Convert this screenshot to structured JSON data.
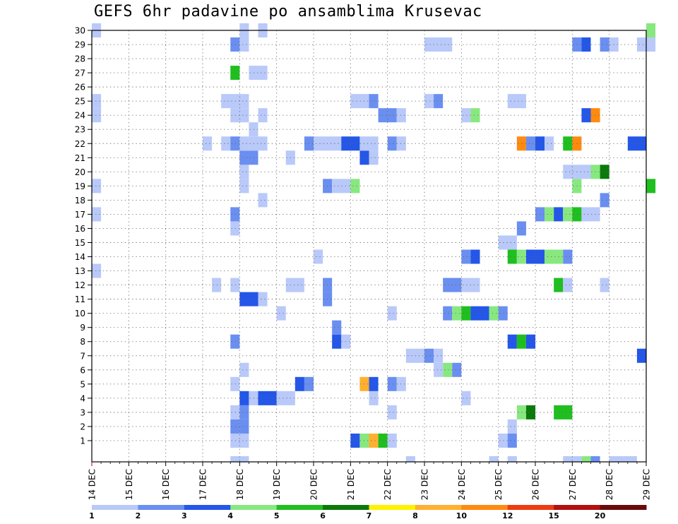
{
  "title": "GEFS 6hr padavine po ansamblima Krusevac",
  "chart_data": {
    "type": "heatmap",
    "title": "GEFS 6hr padavine po ansamblima Krusevac",
    "x_ticks": [
      "14 DEC",
      "15 DEC",
      "16 DEC",
      "17 DEC",
      "18 DEC",
      "19 DEC",
      "20 DEC",
      "21 DEC",
      "22 DEC",
      "23 DEC",
      "24 DEC",
      "25 DEC",
      "26 DEC",
      "27 DEC",
      "28 DEC",
      "29 DEC"
    ],
    "y_ticks": [
      1,
      2,
      3,
      4,
      5,
      6,
      7,
      8,
      9,
      10,
      11,
      12,
      13,
      14,
      15,
      16,
      17,
      18,
      19,
      20,
      21,
      22,
      23,
      24,
      25,
      26,
      27,
      28,
      29,
      30
    ],
    "xlim": [
      "14 DEC",
      "29 DEC"
    ],
    "ylim": [
      0,
      30
    ],
    "time_step_hours": 6,
    "grid": true,
    "colorbar": {
      "levels": [
        "1",
        "2",
        "3",
        "4",
        "5",
        "6",
        "7",
        "8",
        "10",
        "12",
        "15",
        "20"
      ],
      "colors": [
        "#b9c9f9",
        "#6a8ff0",
        "#2456e8",
        "#88e880",
        "#1fbf1f",
        "#0b7a0b",
        "#fff200",
        "#ffb030",
        "#ff8a10",
        "#ee3b10",
        "#b31010",
        "#6a0a0a"
      ]
    },
    "cells": [
      {
        "m": 1,
        "s": 15,
        "e": 17,
        "c": 0
      },
      {
        "m": 1,
        "s": 28,
        "e": 29,
        "c": 2
      },
      {
        "m": 1,
        "s": 29,
        "e": 30,
        "c": 3
      },
      {
        "m": 1,
        "s": 30,
        "e": 31,
        "c": 7
      },
      {
        "m": 1,
        "s": 31,
        "e": 32,
        "c": 4
      },
      {
        "m": 1,
        "s": 32,
        "e": 33,
        "c": 0
      },
      {
        "m": 1,
        "s": 44,
        "e": 45,
        "c": 0
      },
      {
        "m": 1,
        "s": 45,
        "e": 46,
        "c": 1
      },
      {
        "m": 2,
        "s": 15,
        "e": 16,
        "c": 1
      },
      {
        "m": 2,
        "s": 16,
        "e": 17,
        "c": 1
      },
      {
        "m": 2,
        "s": 45,
        "e": 46,
        "c": 0
      },
      {
        "m": 3,
        "s": 15,
        "e": 16,
        "c": 0
      },
      {
        "m": 3,
        "s": 16,
        "e": 17,
        "c": 1
      },
      {
        "m": 3,
        "s": 32,
        "e": 33,
        "c": 0
      },
      {
        "m": 3,
        "s": 46,
        "e": 47,
        "c": 3
      },
      {
        "m": 3,
        "s": 47,
        "e": 48,
        "c": 5
      },
      {
        "m": 3,
        "s": 50,
        "e": 52,
        "c": 4
      },
      {
        "m": 4,
        "s": 16,
        "e": 17,
        "c": 2
      },
      {
        "m": 4,
        "s": 17,
        "e": 18,
        "c": 0
      },
      {
        "m": 4,
        "s": 18,
        "e": 20,
        "c": 2
      },
      {
        "m": 4,
        "s": 20,
        "e": 22,
        "c": 0
      },
      {
        "m": 4,
        "s": 30,
        "e": 31,
        "c": 0
      },
      {
        "m": 4,
        "s": 40,
        "e": 41,
        "c": 0
      },
      {
        "m": 5,
        "s": 15,
        "e": 16,
        "c": 0
      },
      {
        "m": 5,
        "s": 22,
        "e": 23,
        "c": 2
      },
      {
        "m": 5,
        "s": 23,
        "e": 24,
        "c": 1
      },
      {
        "m": 5,
        "s": 29,
        "e": 30,
        "c": 7
      },
      {
        "m": 5,
        "s": 30,
        "e": 31,
        "c": 2
      },
      {
        "m": 5,
        "s": 32,
        "e": 33,
        "c": 1
      },
      {
        "m": 5,
        "s": 33,
        "e": 34,
        "c": 0
      },
      {
        "m": 6,
        "s": 16,
        "e": 17,
        "c": 0
      },
      {
        "m": 6,
        "s": 37,
        "e": 38,
        "c": 0
      },
      {
        "m": 6,
        "s": 38,
        "e": 39,
        "c": 3
      },
      {
        "m": 6,
        "s": 39,
        "e": 40,
        "c": 1
      },
      {
        "m": 7,
        "s": 34,
        "e": 36,
        "c": 0
      },
      {
        "m": 7,
        "s": 36,
        "e": 37,
        "c": 1
      },
      {
        "m": 7,
        "s": 37,
        "e": 38,
        "c": 0
      },
      {
        "m": 7,
        "s": 59,
        "e": 60,
        "c": 2
      },
      {
        "m": 8,
        "s": 15,
        "e": 16,
        "c": 1
      },
      {
        "m": 8,
        "s": 26,
        "e": 27,
        "c": 2
      },
      {
        "m": 8,
        "s": 27,
        "e": 28,
        "c": 0
      },
      {
        "m": 8,
        "s": 45,
        "e": 46,
        "c": 2
      },
      {
        "m": 8,
        "s": 46,
        "e": 47,
        "c": 4
      },
      {
        "m": 8,
        "s": 47,
        "e": 48,
        "c": 2
      },
      {
        "m": 9,
        "s": 26,
        "e": 27,
        "c": 1
      },
      {
        "m": 10,
        "s": 20,
        "e": 21,
        "c": 0
      },
      {
        "m": 10,
        "s": 32,
        "e": 33,
        "c": 0
      },
      {
        "m": 10,
        "s": 38,
        "e": 39,
        "c": 1
      },
      {
        "m": 10,
        "s": 39,
        "e": 40,
        "c": 3
      },
      {
        "m": 10,
        "s": 40,
        "e": 41,
        "c": 4
      },
      {
        "m": 10,
        "s": 41,
        "e": 43,
        "c": 2
      },
      {
        "m": 10,
        "s": 43,
        "e": 44,
        "c": 3
      },
      {
        "m": 10,
        "s": 44,
        "e": 45,
        "c": 1
      },
      {
        "m": 11,
        "s": 16,
        "e": 18,
        "c": 2
      },
      {
        "m": 11,
        "s": 18,
        "e": 19,
        "c": 0
      },
      {
        "m": 11,
        "s": 25,
        "e": 26,
        "c": 1
      },
      {
        "m": 12,
        "s": 13,
        "e": 14,
        "c": 0
      },
      {
        "m": 12,
        "s": 15,
        "e": 16,
        "c": 0
      },
      {
        "m": 12,
        "s": 21,
        "e": 23,
        "c": 0
      },
      {
        "m": 12,
        "s": 25,
        "e": 26,
        "c": 1
      },
      {
        "m": 12,
        "s": 38,
        "e": 40,
        "c": 1
      },
      {
        "m": 12,
        "s": 40,
        "e": 42,
        "c": 0
      },
      {
        "m": 12,
        "s": 50,
        "e": 51,
        "c": 4
      },
      {
        "m": 12,
        "s": 51,
        "e": 52,
        "c": 0
      },
      {
        "m": 12,
        "s": 55,
        "e": 56,
        "c": 0
      },
      {
        "m": 13,
        "s": 0,
        "e": 1,
        "c": 0
      },
      {
        "m": 14,
        "s": 24,
        "e": 25,
        "c": 0
      },
      {
        "m": 14,
        "s": 40,
        "e": 41,
        "c": 1
      },
      {
        "m": 14,
        "s": 41,
        "e": 42,
        "c": 2
      },
      {
        "m": 14,
        "s": 45,
        "e": 46,
        "c": 4
      },
      {
        "m": 14,
        "s": 46,
        "e": 47,
        "c": 3
      },
      {
        "m": 14,
        "s": 47,
        "e": 49,
        "c": 2
      },
      {
        "m": 14,
        "s": 49,
        "e": 51,
        "c": 3
      },
      {
        "m": 14,
        "s": 51,
        "e": 52,
        "c": 1
      },
      {
        "m": 15,
        "s": 44,
        "e": 46,
        "c": 0
      },
      {
        "m": 16,
        "s": 15,
        "e": 16,
        "c": 0
      },
      {
        "m": 16,
        "s": 46,
        "e": 47,
        "c": 1
      },
      {
        "m": 17,
        "s": 0,
        "e": 1,
        "c": 0
      },
      {
        "m": 17,
        "s": 15,
        "e": 16,
        "c": 1
      },
      {
        "m": 17,
        "s": 48,
        "e": 49,
        "c": 1
      },
      {
        "m": 17,
        "s": 49,
        "e": 50,
        "c": 3
      },
      {
        "m": 17,
        "s": 50,
        "e": 51,
        "c": 2
      },
      {
        "m": 17,
        "s": 51,
        "e": 52,
        "c": 3
      },
      {
        "m": 17,
        "s": 52,
        "e": 53,
        "c": 4
      },
      {
        "m": 17,
        "s": 53,
        "e": 55,
        "c": 0
      },
      {
        "m": 18,
        "s": 18,
        "e": 19,
        "c": 0
      },
      {
        "m": 18,
        "s": 55,
        "e": 56,
        "c": 1
      },
      {
        "m": 19,
        "s": 0,
        "e": 1,
        "c": 0
      },
      {
        "m": 19,
        "s": 16,
        "e": 17,
        "c": 0
      },
      {
        "m": 19,
        "s": 25,
        "e": 26,
        "c": 1
      },
      {
        "m": 19,
        "s": 26,
        "e": 28,
        "c": 0
      },
      {
        "m": 19,
        "s": 28,
        "e": 29,
        "c": 3
      },
      {
        "m": 19,
        "s": 52,
        "e": 53,
        "c": 3
      },
      {
        "m": 19,
        "s": 60,
        "e": 61,
        "c": 4
      },
      {
        "m": 20,
        "s": 16,
        "e": 17,
        "c": 0
      },
      {
        "m": 20,
        "s": 51,
        "e": 54,
        "c": 0
      },
      {
        "m": 20,
        "s": 54,
        "e": 55,
        "c": 3
      },
      {
        "m": 20,
        "s": 55,
        "e": 56,
        "c": 5
      },
      {
        "m": 21,
        "s": 16,
        "e": 18,
        "c": 1
      },
      {
        "m": 21,
        "s": 21,
        "e": 22,
        "c": 0
      },
      {
        "m": 21,
        "s": 29,
        "e": 30,
        "c": 2
      },
      {
        "m": 21,
        "s": 30,
        "e": 31,
        "c": 0
      },
      {
        "m": 22,
        "s": 12,
        "e": 13,
        "c": 0
      },
      {
        "m": 22,
        "s": 14,
        "e": 15,
        "c": 0
      },
      {
        "m": 22,
        "s": 15,
        "e": 16,
        "c": 1
      },
      {
        "m": 22,
        "s": 16,
        "e": 17,
        "c": 0
      },
      {
        "m": 22,
        "s": 17,
        "e": 19,
        "c": 0
      },
      {
        "m": 22,
        "s": 23,
        "e": 24,
        "c": 1
      },
      {
        "m": 22,
        "s": 24,
        "e": 27,
        "c": 0
      },
      {
        "m": 22,
        "s": 27,
        "e": 29,
        "c": 2
      },
      {
        "m": 22,
        "s": 29,
        "e": 31,
        "c": 0
      },
      {
        "m": 22,
        "s": 32,
        "e": 33,
        "c": 1
      },
      {
        "m": 22,
        "s": 33,
        "e": 34,
        "c": 0
      },
      {
        "m": 22,
        "s": 46,
        "e": 47,
        "c": 8
      },
      {
        "m": 22,
        "s": 47,
        "e": 48,
        "c": 1
      },
      {
        "m": 22,
        "s": 48,
        "e": 49,
        "c": 2
      },
      {
        "m": 22,
        "s": 49,
        "e": 50,
        "c": 0
      },
      {
        "m": 22,
        "s": 51,
        "e": 52,
        "c": 4
      },
      {
        "m": 22,
        "s": 52,
        "e": 53,
        "c": 8
      },
      {
        "m": 22,
        "s": 58,
        "e": 60,
        "c": 2
      },
      {
        "m": 23,
        "s": 17,
        "e": 18,
        "c": 0
      },
      {
        "m": 24,
        "s": 0,
        "e": 1,
        "c": 0
      },
      {
        "m": 24,
        "s": 15,
        "e": 17,
        "c": 0
      },
      {
        "m": 24,
        "s": 18,
        "e": 19,
        "c": 0
      },
      {
        "m": 24,
        "s": 31,
        "e": 33,
        "c": 1
      },
      {
        "m": 24,
        "s": 33,
        "e": 34,
        "c": 0
      },
      {
        "m": 24,
        "s": 40,
        "e": 41,
        "c": 0
      },
      {
        "m": 24,
        "s": 41,
        "e": 42,
        "c": 3
      },
      {
        "m": 24,
        "s": 53,
        "e": 54,
        "c": 2
      },
      {
        "m": 24,
        "s": 54,
        "e": 55,
        "c": 8
      },
      {
        "m": 25,
        "s": 0,
        "e": 1,
        "c": 0
      },
      {
        "m": 25,
        "s": 14,
        "e": 17,
        "c": 0
      },
      {
        "m": 25,
        "s": 28,
        "e": 30,
        "c": 0
      },
      {
        "m": 25,
        "s": 30,
        "e": 31,
        "c": 1
      },
      {
        "m": 25,
        "s": 36,
        "e": 37,
        "c": 0
      },
      {
        "m": 25,
        "s": 37,
        "e": 38,
        "c": 1
      },
      {
        "m": 25,
        "s": 45,
        "e": 47,
        "c": 0
      },
      {
        "m": 27,
        "s": 15,
        "e": 16,
        "c": 4
      },
      {
        "m": 27,
        "s": 17,
        "e": 19,
        "c": 0
      },
      {
        "m": 29,
        "s": 15,
        "e": 16,
        "c": 1
      },
      {
        "m": 29,
        "s": 16,
        "e": 17,
        "c": 0
      },
      {
        "m": 29,
        "s": 36,
        "e": 39,
        "c": 0
      },
      {
        "m": 29,
        "s": 52,
        "e": 53,
        "c": 1
      },
      {
        "m": 29,
        "s": 53,
        "e": 54,
        "c": 2
      },
      {
        "m": 29,
        "s": 55,
        "e": 56,
        "c": 1
      },
      {
        "m": 29,
        "s": 56,
        "e": 57,
        "c": 0
      },
      {
        "m": 29,
        "s": 59,
        "e": 61,
        "c": 0
      },
      {
        "m": 30,
        "s": 0,
        "e": 1,
        "c": 0
      },
      {
        "m": 30,
        "s": 16,
        "e": 17,
        "c": 0
      },
      {
        "m": 30,
        "s": 18,
        "e": 19,
        "c": 0
      },
      {
        "m": 30,
        "s": 60,
        "e": 61,
        "c": 3
      }
    ],
    "edge_cells": [
      {
        "s": 15,
        "e": 17,
        "c": 0
      },
      {
        "s": 34,
        "e": 35,
        "c": 0
      },
      {
        "s": 43,
        "e": 44,
        "c": 0
      },
      {
        "s": 45,
        "e": 46,
        "c": 0
      },
      {
        "s": 51,
        "e": 53,
        "c": 0
      },
      {
        "s": 53,
        "e": 54,
        "c": 3
      },
      {
        "s": 54,
        "e": 55,
        "c": 1
      },
      {
        "s": 56,
        "e": 59,
        "c": 0
      }
    ]
  }
}
